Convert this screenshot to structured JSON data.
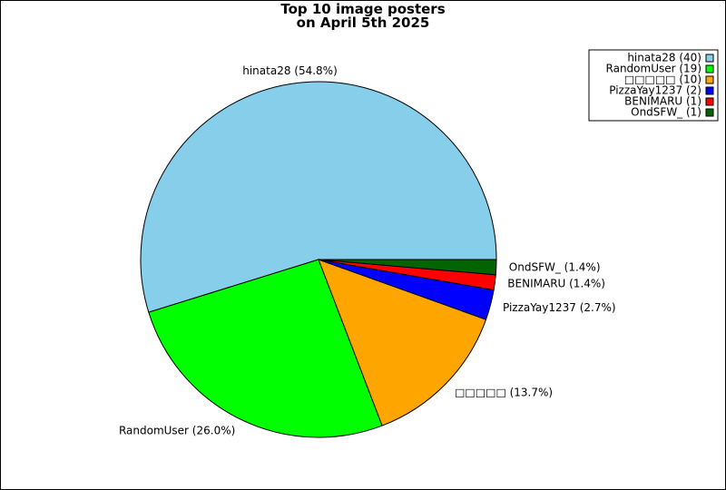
{
  "chart_data": {
    "type": "pie",
    "title_lines": [
      "Top 10 image posters",
      "on April 5th 2025"
    ],
    "slices": [
      {
        "name": "hinata28",
        "value": 40,
        "label": "hinata28 (54.8%)",
        "legend": "hinata28 (40)",
        "color": "#87CEEB"
      },
      {
        "name": "RandomUser",
        "value": 19,
        "label": "RandomUser (26.0%)",
        "legend": "RandomUser (19)",
        "color": "#00FF00"
      },
      {
        "name": "□□□□□",
        "value": 10,
        "label": "□□□□□ (13.7%)",
        "legend": "□□□□□ (10)",
        "color": "#FFA500"
      },
      {
        "name": "PizzaYay1237",
        "value": 2,
        "label": "PizzaYay1237 (2.7%)",
        "legend": "PizzaYay1237 (2)",
        "color": "#0000FF"
      },
      {
        "name": "BENIMARU",
        "value": 1,
        "label": "BENIMARU (1.4%)",
        "legend": "BENIMARU (1)",
        "color": "#FF0000"
      },
      {
        "name": "OndSFW_",
        "value": 1,
        "label": "OndSFW_ (1.4%)",
        "legend": "OndSFW_ (1)",
        "color": "#006400"
      }
    ],
    "legend_position": "top-right"
  }
}
